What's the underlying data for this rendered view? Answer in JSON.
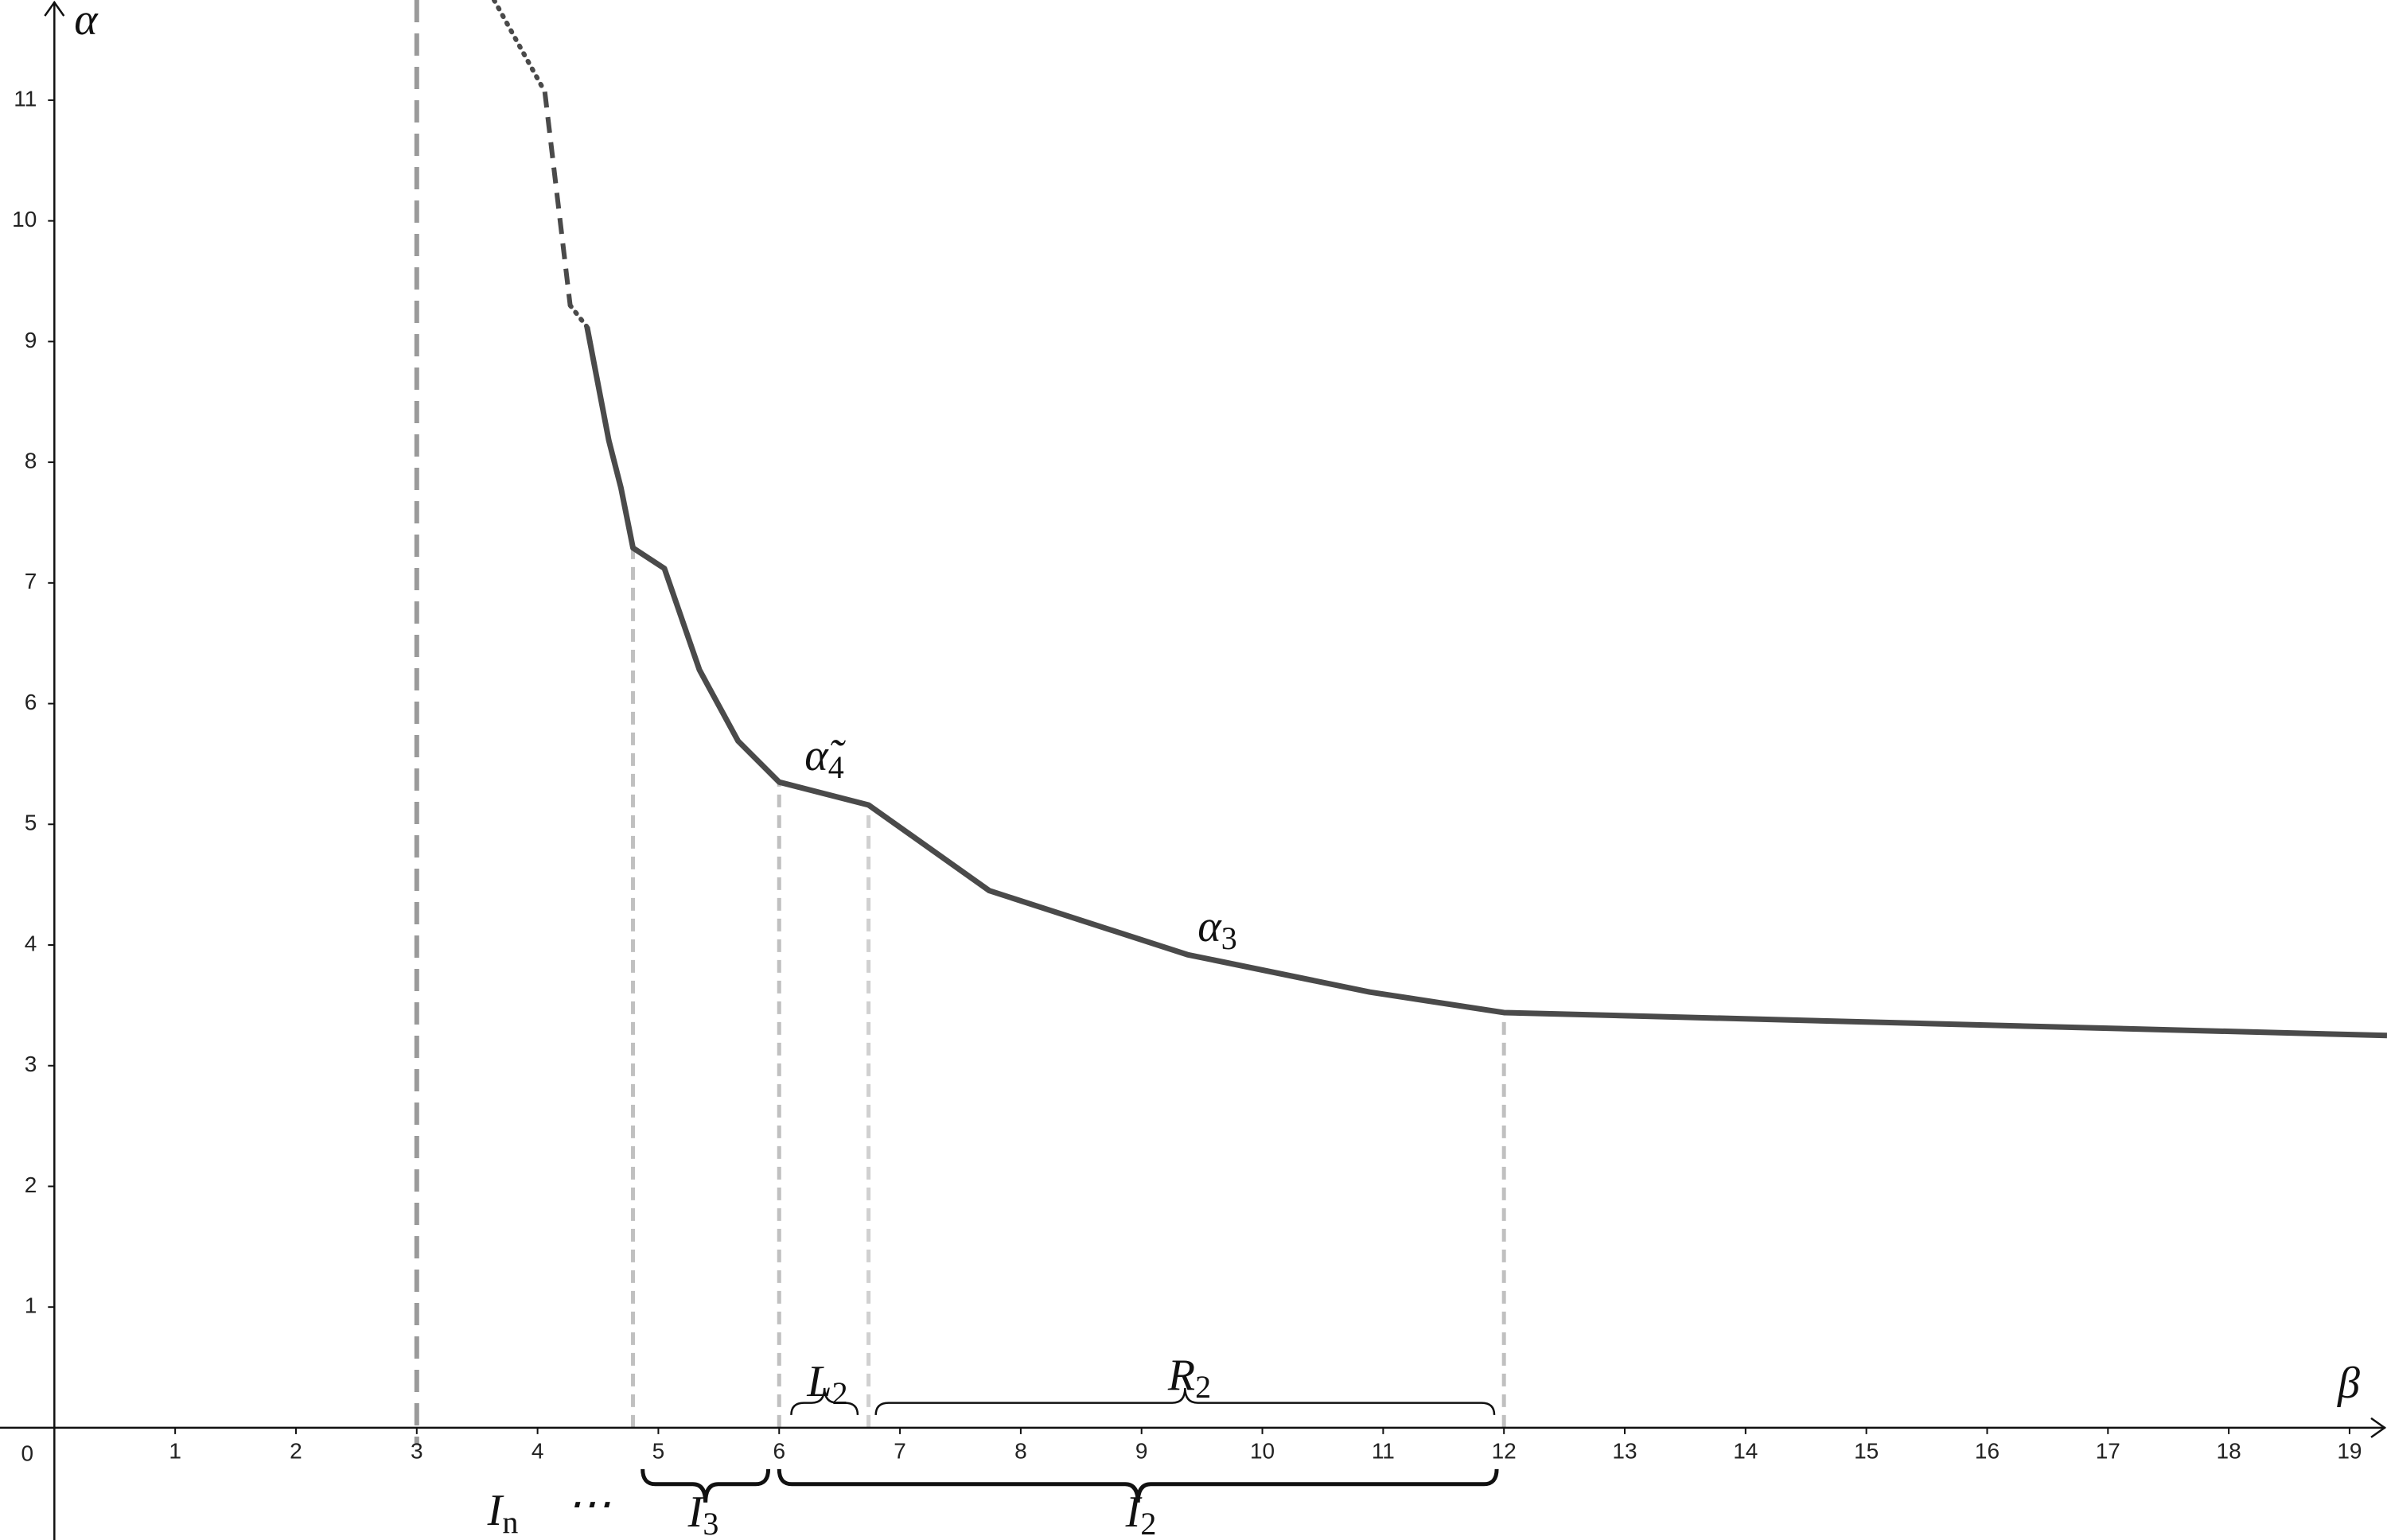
{
  "chart_data": {
    "type": "line",
    "x_label": "β",
    "y_label": "α",
    "xlim": [
      -0.45,
      19.31
    ],
    "ylim": [
      -0.93,
      11.83
    ],
    "xticks": [
      0,
      1,
      2,
      3,
      4,
      5,
      6,
      7,
      8,
      9,
      10,
      11,
      12,
      13,
      14,
      15,
      16,
      17,
      18,
      19
    ],
    "yticks": [
      1,
      2,
      3,
      4,
      5,
      6,
      7,
      8,
      9,
      10,
      11
    ],
    "grid": false,
    "series": [
      {
        "style": "dotted",
        "color": "#4a4a4a",
        "x": [
          3.64,
          4.06
        ],
        "values": [
          11.83,
          11.07
        ]
      },
      {
        "style": "dashed",
        "color": "#4a4a4a",
        "x": [
          4.06,
          4.27
        ],
        "values": [
          11.07,
          9.3
        ]
      },
      {
        "style": "dotted",
        "color": "#4a4a4a",
        "x": [
          4.27,
          4.41
        ],
        "values": [
          9.3,
          9.12
        ]
      },
      {
        "style": "solid",
        "color": "#4a4a4a",
        "x": [
          4.41,
          4.59,
          4.69,
          4.79,
          5.05,
          5.34,
          5.66,
          6.0,
          6.74,
          7.74,
          9.38,
          10.89,
          12.0,
          15.47,
          19.31
        ],
        "values": [
          9.12,
          8.18,
          7.79,
          7.29,
          7.12,
          6.28,
          5.69,
          5.35,
          5.16,
          4.45,
          3.92,
          3.61,
          3.44,
          3.35,
          3.25
        ]
      }
    ],
    "vlines": [
      {
        "x": 3,
        "style": "long-dash",
        "color": "#9a9a9a"
      },
      {
        "x": 4.79,
        "y": 7.29,
        "style": "dashed",
        "color": "#c0c0c0"
      },
      {
        "x": 6.0,
        "y": 5.35,
        "style": "dashed",
        "color": "#c0c0c0"
      },
      {
        "x": 6.74,
        "y": 5.16,
        "style": "dashed",
        "color": "#d0d0d0"
      },
      {
        "x": 12.0,
        "y": 3.44,
        "style": "dashed",
        "color": "#c0c0c0"
      }
    ],
    "braces": [
      {
        "from": 6.1,
        "to": 6.65,
        "side": "above",
        "weight": "thin"
      },
      {
        "from": 6.8,
        "to": 11.92,
        "side": "above",
        "weight": "thin"
      },
      {
        "from": 4.87,
        "to": 5.91,
        "side": "below",
        "weight": "bold"
      },
      {
        "from": 6.0,
        "to": 11.94,
        "side": "below",
        "weight": "bold"
      }
    ],
    "annotations": [
      {
        "text": "α̃",
        "sub": "4"
      },
      {
        "text": "α",
        "sub": "3"
      },
      {
        "text": "L",
        "sub": "2"
      },
      {
        "text": "R",
        "sub": "2"
      },
      {
        "text": "I",
        "sub": "n"
      },
      {
        "text": "⋯"
      },
      {
        "text": "I",
        "sub": "3"
      },
      {
        "text": "I",
        "sub": "2"
      }
    ]
  }
}
